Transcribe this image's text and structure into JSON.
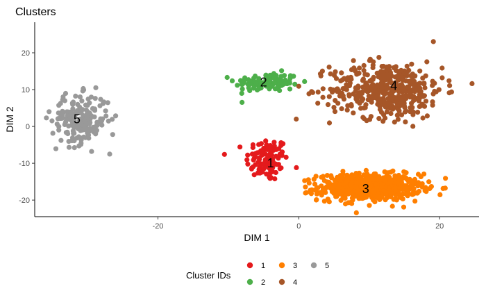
{
  "chart_data": {
    "type": "scatter",
    "title": "Clusters",
    "xlabel": "DIM 1",
    "ylabel": "DIM 2",
    "xlim": [
      -37.5,
      25.6
    ],
    "ylim": [
      -24.5,
      28.3
    ],
    "x_ticks": [
      -20,
      0,
      20
    ],
    "y_ticks": [
      -20,
      -10,
      0,
      10,
      20
    ],
    "grid": false,
    "legend": {
      "title": "Cluster IDs",
      "placement": "bottom",
      "entries": [
        "1",
        "2",
        "3",
        "4",
        "5"
      ]
    },
    "series": [
      {
        "name": "1",
        "color": "#E41A1C",
        "n_points": 110,
        "center": [
          -4.5,
          -9.0
        ],
        "sd": [
          1.5,
          3.0
        ],
        "label_position": [
          -4.0,
          -10.0
        ]
      },
      {
        "name": "2",
        "color": "#4DAF4A",
        "n_points": 120,
        "center": [
          -4.5,
          12.0
        ],
        "sd": [
          2.3,
          1.3
        ],
        "label_position": [
          -5.0,
          12.0
        ]
      },
      {
        "name": "3",
        "color": "#FF7F00",
        "n_points": 600,
        "center": [
          10.0,
          -16.5
        ],
        "sd": [
          3.6,
          1.8
        ],
        "label_position": [
          9.5,
          -17.0
        ]
      },
      {
        "name": "4",
        "color": "#A65628",
        "n_points": 450,
        "center": [
          12.5,
          10.0
        ],
        "sd": [
          4.0,
          3.8
        ],
        "label_position": [
          13.5,
          11.0
        ]
      },
      {
        "name": "5",
        "color": "#999999",
        "n_points": 200,
        "center": [
          -31.0,
          2.0
        ],
        "sd": [
          2.0,
          3.3
        ],
        "label_position": [
          -31.5,
          2.0
        ]
      }
    ]
  }
}
